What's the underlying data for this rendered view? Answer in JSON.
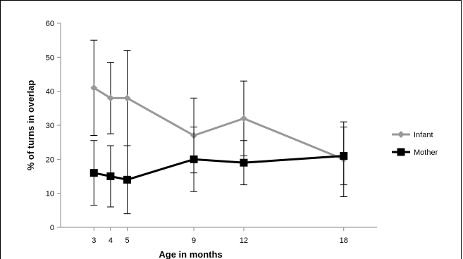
{
  "chart_data": {
    "type": "line",
    "xlabel": "Age in months",
    "ylabel": "% of turns in overlap",
    "x": [
      3,
      4,
      5,
      9,
      12,
      18
    ],
    "xlim": [
      1,
      20
    ],
    "ylim": [
      0,
      60
    ],
    "yticks": [
      0,
      10,
      20,
      30,
      40,
      50,
      60
    ],
    "grid": false,
    "legend_position": "right",
    "series": [
      {
        "name": "Infant",
        "color": "#999999",
        "marker": "diamond",
        "values": [
          41,
          38,
          38,
          27,
          32,
          20
        ],
        "error_low": [
          27,
          27.5,
          24,
          16,
          21,
          12.5
        ],
        "error_high": [
          55,
          48.5,
          52,
          38,
          43,
          29.5
        ]
      },
      {
        "name": "Mother",
        "color": "#000000",
        "marker": "square",
        "values": [
          16,
          15,
          14,
          20,
          19,
          21
        ],
        "error_low": [
          6.5,
          6,
          4,
          10.5,
          12.5,
          9
        ],
        "error_high": [
          25.5,
          24,
          24,
          29.5,
          25.5,
          31
        ]
      }
    ]
  }
}
